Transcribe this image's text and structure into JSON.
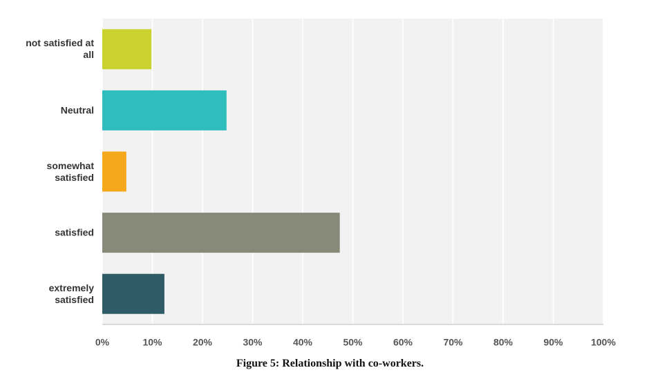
{
  "chart_data": {
    "type": "bar",
    "orientation": "horizontal",
    "caption": "Figure 5: Relationship with co-workers.",
    "categories": [
      "not satisfied at all",
      "Neutral",
      "somewhat satisfied",
      "satisfied",
      "extremely satisfied"
    ],
    "values": [
      9.8,
      24.8,
      4.8,
      47.4,
      12.4
    ],
    "colors": [
      "#c9d22e",
      "#2fbdbe",
      "#f5a81c",
      "#878a78",
      "#2e5b66"
    ],
    "xlim": [
      0,
      100
    ],
    "xticks": [
      {
        "value": 0,
        "label": "0%"
      },
      {
        "value": 10,
        "label": "10%"
      },
      {
        "value": 20,
        "label": "20%"
      },
      {
        "value": 30,
        "label": "30%"
      },
      {
        "value": 40,
        "label": "40%"
      },
      {
        "value": 50,
        "label": "50%"
      },
      {
        "value": 60,
        "label": "60%"
      },
      {
        "value": 70,
        "label": "70%"
      },
      {
        "value": 80,
        "label": "80%"
      },
      {
        "value": 90,
        "label": "90%"
      },
      {
        "value": 100,
        "label": "100%"
      }
    ],
    "grid": true
  }
}
